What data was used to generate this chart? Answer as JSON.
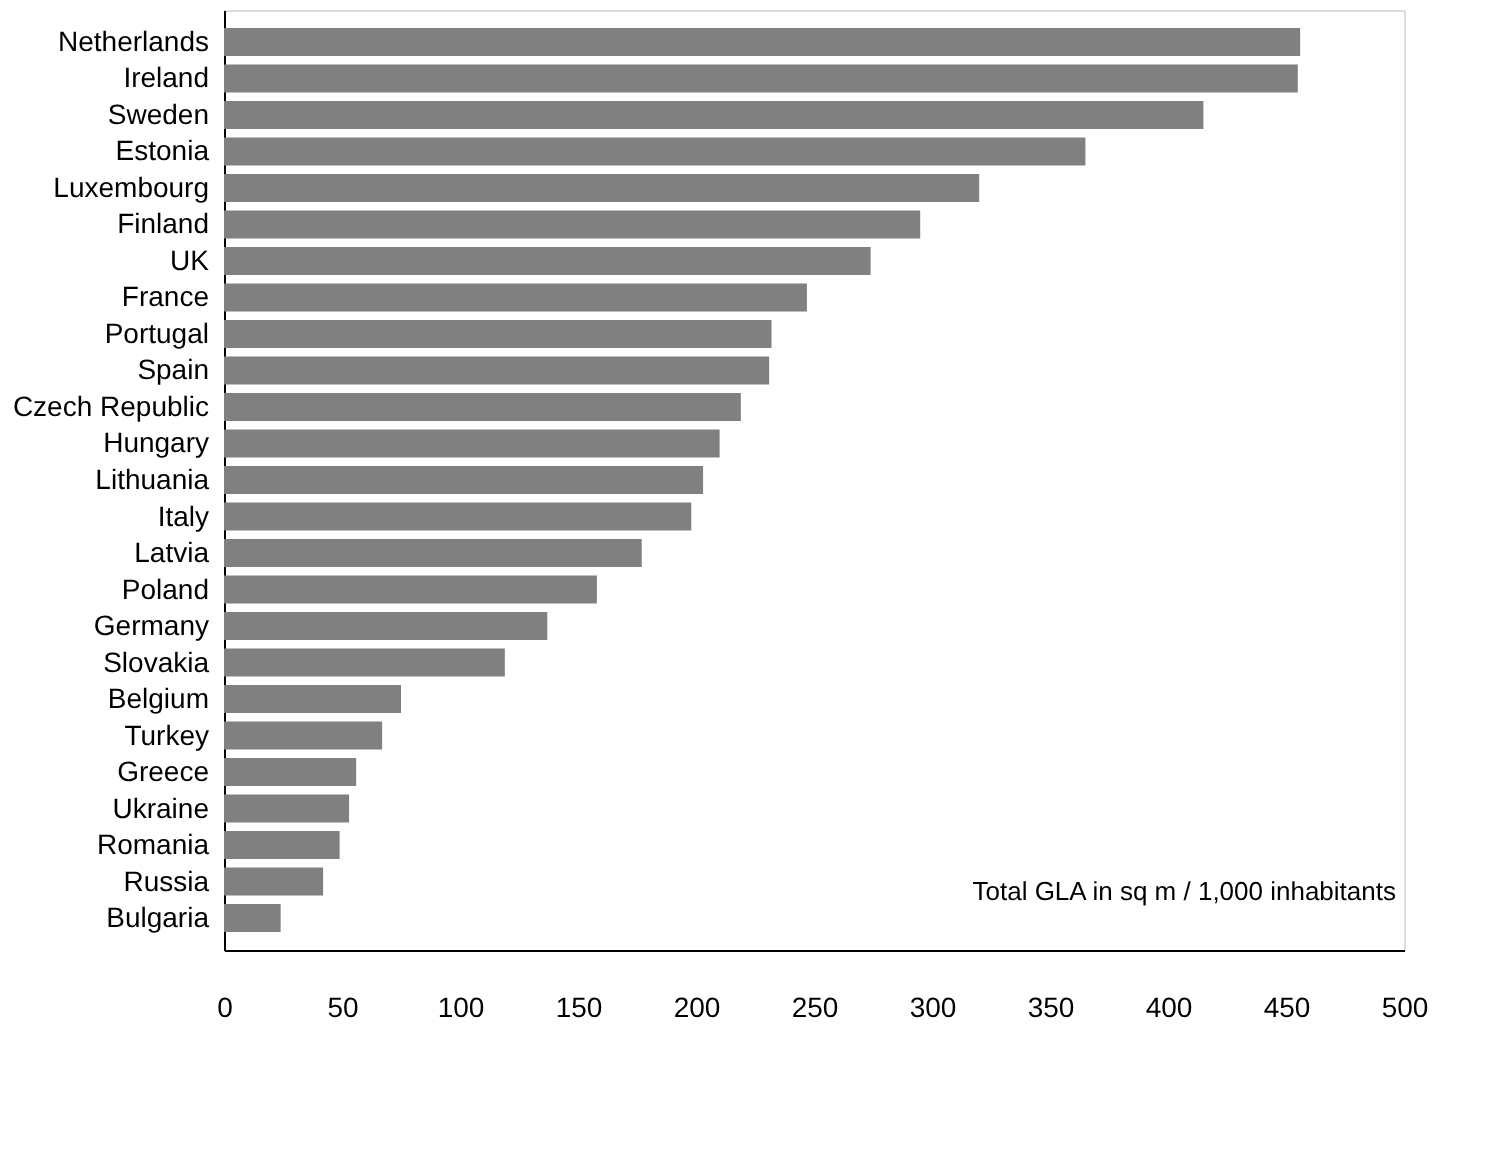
{
  "chart_data": {
    "type": "bar",
    "orientation": "horizontal",
    "categories": [
      "Netherlands",
      "Ireland",
      "Sweden",
      "Estonia",
      "Luxembourg",
      "Finland",
      "UK",
      "France",
      "Portugal",
      "Spain",
      "Czech Republic",
      "Hungary",
      "Lithuania",
      "Italy",
      "Latvia",
      "Poland",
      "Germany",
      "Slovakia",
      "Belgium",
      "Turkey",
      "Greece",
      "Ukraine",
      "Romania",
      "Russia",
      "Bulgaria"
    ],
    "values": [
      456,
      455,
      415,
      365,
      320,
      295,
      274,
      247,
      232,
      231,
      219,
      210,
      203,
      198,
      177,
      158,
      137,
      119,
      75,
      67,
      56,
      53,
      49,
      42,
      24
    ],
    "color": "#808080",
    "xlim": [
      0,
      500
    ],
    "xticks": [
      0,
      50,
      100,
      150,
      200,
      250,
      300,
      350,
      400,
      450,
      500
    ],
    "grid": false,
    "annotations": [
      "Total GLA in sq m / 1,000 inhabitants"
    ]
  }
}
